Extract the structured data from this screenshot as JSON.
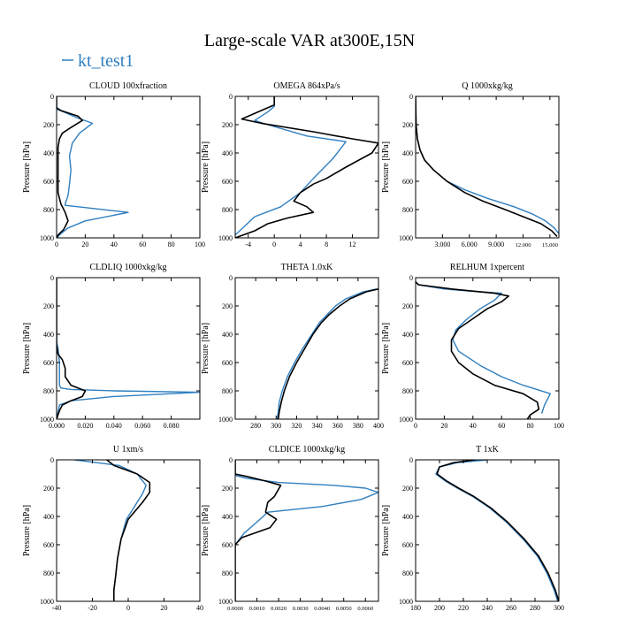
{
  "figure": {
    "title": "Large-scale VAR at300E,15N",
    "legend": [
      {
        "name": "kt_test1",
        "color": "#2f7fc1"
      }
    ],
    "ref_color": "#000000"
  },
  "chart_data": [
    {
      "type": "line",
      "title": "CLOUD 100xfraction",
      "ylabel": "Pressure [hPa]",
      "xlim": [
        0,
        100
      ],
      "ylim": [
        1000,
        0
      ],
      "xticks": [
        0,
        20,
        40,
        60,
        80,
        100
      ],
      "xtick_labels": [
        "0",
        "20",
        "40",
        "60",
        "80",
        "100"
      ],
      "yticks": [
        0,
        200,
        400,
        600,
        800,
        1000
      ],
      "ytick_labels": [
        "0",
        "200",
        "400",
        "600",
        "800",
        "1000"
      ],
      "series": [
        {
          "name": "kt_test1",
          "color": "#2f7fc1",
          "x": [
            0,
            0,
            5,
            14,
            25,
            16,
            11,
            9,
            10,
            9,
            8,
            6,
            6,
            15,
            50,
            20,
            8,
            3,
            0
          ],
          "y": [
            0,
            90,
            110,
            150,
            190,
            260,
            330,
            420,
            520,
            620,
            700,
            760,
            770,
            780,
            820,
            880,
            930,
            970,
            1000
          ]
        },
        {
          "name": "",
          "color": "#000000",
          "x": [
            0,
            0,
            3,
            15,
            18,
            10,
            4,
            2,
            1,
            1,
            1,
            1,
            3,
            6,
            8,
            5,
            1,
            0
          ],
          "y": [
            0,
            80,
            100,
            140,
            170,
            220,
            260,
            300,
            360,
            450,
            560,
            680,
            760,
            820,
            880,
            940,
            980,
            1000
          ]
        }
      ]
    },
    {
      "type": "line",
      "title": "OMEGA 864xPa/s",
      "ylabel": "Pressure [hPa]",
      "xlim": [
        -6,
        16
      ],
      "ylim": [
        1000,
        0
      ],
      "xticks": [
        -4,
        0,
        4,
        8,
        12
      ],
      "xtick_labels": [
        "-4",
        "0",
        "4",
        "8",
        "12"
      ],
      "yticks": [
        0,
        200,
        400,
        600,
        800,
        1000
      ],
      "ytick_labels": [
        "0",
        "200",
        "400",
        "600",
        "800",
        "1000"
      ],
      "series": [
        {
          "name": "kt_test1",
          "color": "#2f7fc1",
          "x": [
            0,
            0,
            -1,
            -3,
            -1,
            5,
            11,
            9,
            6,
            4,
            1,
            -3,
            -6
          ],
          "y": [
            0,
            70,
            110,
            170,
            200,
            280,
            320,
            440,
            580,
            680,
            780,
            850,
            980
          ]
        },
        {
          "name": "",
          "color": "#000000",
          "x": [
            0,
            0,
            -2,
            -5,
            -2,
            6,
            12,
            16,
            15,
            11,
            8,
            6,
            4,
            3,
            5,
            6,
            2,
            -1,
            -3,
            -6
          ],
          "y": [
            0,
            60,
            100,
            160,
            190,
            250,
            300,
            330,
            400,
            500,
            580,
            620,
            680,
            740,
            780,
            820,
            860,
            900,
            950,
            1000
          ]
        }
      ]
    },
    {
      "type": "line",
      "title": "Q 1000xkg/kg",
      "ylabel": "Pressure [hPa]",
      "xlim": [
        0,
        16000
      ],
      "ylim": [
        1000,
        0
      ],
      "xticks": [
        3000,
        6000,
        9000,
        12000,
        15000
      ],
      "xtick_labels": [
        "3.000",
        "6.000",
        "9.000",
        "12.000",
        "15.000"
      ],
      "yticks": [
        0,
        200,
        400,
        600,
        800,
        1000
      ],
      "ytick_labels": [
        "0",
        "200",
        "400",
        "600",
        "800",
        "1000"
      ],
      "series": [
        {
          "name": "kt_test1",
          "color": "#2f7fc1",
          "x": [
            0,
            50,
            200,
            500,
            1000,
            2000,
            3500,
            5500,
            8000,
            11000,
            13000,
            14500,
            15500,
            16000
          ],
          "y": [
            0,
            200,
            300,
            380,
            450,
            520,
            600,
            660,
            720,
            780,
            830,
            880,
            930,
            970
          ]
        },
        {
          "name": "",
          "color": "#000000",
          "x": [
            0,
            50,
            200,
            500,
            1000,
            2000,
            3500,
            5500,
            7500,
            10000,
            12000,
            14000,
            15200,
            15800
          ],
          "y": [
            0,
            200,
            300,
            380,
            450,
            520,
            600,
            680,
            740,
            800,
            850,
            900,
            950,
            990
          ]
        }
      ]
    },
    {
      "type": "line",
      "title": "CLDLIQ 1000xkg/kg",
      "ylabel": "Pressure [hPa]",
      "xlim": [
        0,
        0.1
      ],
      "ylim": [
        1000,
        0
      ],
      "xticks": [
        0,
        0.02,
        0.04,
        0.06,
        0.08
      ],
      "xtick_labels": [
        "0.000",
        "0.020",
        "0.040",
        "0.060",
        "0.080"
      ],
      "yticks": [
        0,
        200,
        400,
        600,
        800,
        1000
      ],
      "ytick_labels": [
        "0",
        "200",
        "400",
        "600",
        "800",
        "1000"
      ],
      "series": [
        {
          "name": "kt_test1",
          "color": "#2f7fc1",
          "x": [
            0,
            0,
            0.001,
            0.002,
            0.002,
            0.002,
            0.003,
            0.01,
            0.04,
            0.1,
            0.04,
            0.01,
            0.002,
            0
          ],
          "y": [
            0,
            450,
            500,
            600,
            700,
            760,
            780,
            790,
            800,
            810,
            840,
            870,
            900,
            1000
          ]
        },
        {
          "name": "",
          "color": "#000000",
          "x": [
            0,
            0,
            0.001,
            0.004,
            0.006,
            0.006,
            0.01,
            0.02,
            0.018,
            0.01,
            0.004,
            0.002,
            0
          ],
          "y": [
            0,
            480,
            540,
            580,
            640,
            700,
            760,
            800,
            840,
            870,
            900,
            940,
            1000
          ]
        }
      ]
    },
    {
      "type": "line",
      "title": "THETA 1.0xK",
      "ylabel": "Pressure [hPa]",
      "xlim": [
        260,
        400
      ],
      "ylim": [
        1000,
        0
      ],
      "xticks": [
        280,
        300,
        320,
        340,
        360,
        380,
        400
      ],
      "xtick_labels": [
        "280",
        "300",
        "320",
        "340",
        "360",
        "380",
        "400"
      ],
      "yticks": [
        0,
        200,
        400,
        600,
        800,
        1000
      ],
      "ytick_labels": [
        "0",
        "200",
        "400",
        "600",
        "800",
        "1000"
      ],
      "series": [
        {
          "name": "kt_test1",
          "color": "#2f7fc1",
          "x": [
            398,
            385,
            368,
            358,
            350,
            342,
            335,
            326,
            318,
            311,
            306,
            303,
            302,
            301
          ],
          "y": [
            80,
            100,
            150,
            200,
            260,
            320,
            400,
            500,
            600,
            700,
            800,
            880,
            950,
            1000
          ]
        },
        {
          "name": "",
          "color": "#000000",
          "x": [
            400,
            388,
            372,
            362,
            352,
            344,
            336,
            328,
            320,
            313,
            308,
            305,
            303,
            302
          ],
          "y": [
            80,
            100,
            150,
            200,
            260,
            320,
            400,
            500,
            600,
            700,
            800,
            880,
            950,
            1000
          ]
        }
      ]
    },
    {
      "type": "line",
      "title": "RELHUM 1xpercent",
      "ylabel": "Pressure [hPa]",
      "xlim": [
        0,
        100
      ],
      "ylim": [
        1000,
        0
      ],
      "xticks": [
        0,
        20,
        40,
        60,
        80,
        100
      ],
      "xtick_labels": [
        "0",
        "20",
        "40",
        "60",
        "80",
        "100"
      ],
      "yticks": [
        0,
        200,
        400,
        600,
        800,
        1000
      ],
      "ytick_labels": [
        "0",
        "200",
        "400",
        "600",
        "800",
        "1000"
      ],
      "series": [
        {
          "name": "kt_test1",
          "color": "#2f7fc1",
          "x": [
            0,
            2,
            20,
            45,
            60,
            55,
            45,
            35,
            28,
            26,
            30,
            45,
            60,
            75,
            94,
            90,
            88
          ],
          "y": [
            30,
            50,
            80,
            100,
            110,
            160,
            220,
            300,
            370,
            440,
            520,
            620,
            700,
            760,
            820,
            900,
            960
          ]
        },
        {
          "name": "",
          "color": "#000000",
          "x": [
            0,
            2,
            25,
            55,
            65,
            60,
            50,
            40,
            30,
            25,
            25,
            30,
            40,
            55,
            75,
            85,
            86,
            80,
            78
          ],
          "y": [
            30,
            50,
            80,
            110,
            130,
            170,
            220,
            290,
            360,
            440,
            520,
            600,
            680,
            760,
            820,
            880,
            930,
            970,
            1000
          ]
        }
      ]
    },
    {
      "type": "line",
      "title": "U 1xm/s",
      "ylabel": "Pressure [hPa]",
      "xlim": [
        -40,
        40
      ],
      "ylim": [
        1000,
        0
      ],
      "xticks": [
        -40,
        -20,
        0,
        20,
        40
      ],
      "xtick_labels": [
        "-40",
        "-20",
        "0",
        "20",
        "40"
      ],
      "yticks": [
        0,
        200,
        400,
        600,
        800,
        1000
      ],
      "ytick_labels": [
        "0",
        "200",
        "400",
        "600",
        "800",
        "1000"
      ],
      "series": [
        {
          "name": "kt_test1",
          "color": "#2f7fc1",
          "x": [
            -30,
            -5,
            5,
            10,
            8,
            4,
            -1,
            -4,
            -6,
            -7,
            -8,
            -8
          ],
          "y": [
            0,
            40,
            100,
            180,
            240,
            320,
            420,
            560,
            700,
            820,
            920,
            1000
          ]
        },
        {
          "name": "",
          "color": "#000000",
          "x": [
            -12,
            -8,
            5,
            12,
            12,
            8,
            0,
            -4,
            -6,
            -7,
            -8,
            -8
          ],
          "y": [
            0,
            40,
            100,
            160,
            230,
            300,
            420,
            560,
            700,
            820,
            920,
            1000
          ]
        }
      ]
    },
    {
      "type": "line",
      "title": "CLDICE 1000xkg/kg",
      "ylabel": "Pressure [hPa]",
      "xlim": [
        0,
        0.0066
      ],
      "ylim": [
        1000,
        0
      ],
      "xticks": [
        0,
        0.001,
        0.002,
        0.003,
        0.004,
        0.005,
        0.006
      ],
      "xtick_labels": [
        "0.0000",
        "0.0010",
        "0.0020",
        "0.0030",
        "0.0040",
        "0.0050",
        "0.0060"
      ],
      "yticks": [
        0,
        200,
        400,
        600,
        800,
        1000
      ],
      "ytick_labels": [
        "0",
        "200",
        "400",
        "600",
        "800",
        "1000"
      ],
      "series": [
        {
          "name": "kt_test1",
          "color": "#2f7fc1",
          "x": [
            0,
            0,
            0.0005,
            0.002,
            0.0045,
            0.006,
            0.0066,
            0.0058,
            0.004,
            0.0015,
            0.001,
            0.0004,
            0
          ],
          "y": [
            0,
            110,
            130,
            160,
            180,
            200,
            230,
            280,
            330,
            370,
            440,
            520,
            600
          ]
        },
        {
          "name": "",
          "color": "#000000",
          "x": [
            0,
            0,
            0.0006,
            0.0014,
            0.0021,
            0.0018,
            0.0015,
            0.0014,
            0.0019,
            0.0016,
            0.0003,
            0,
            0
          ],
          "y": [
            0,
            100,
            120,
            150,
            180,
            260,
            300,
            370,
            420,
            480,
            550,
            600,
            1000
          ]
        }
      ]
    },
    {
      "type": "line",
      "title": "T 1xK",
      "ylabel": "Pressure [hPa]",
      "xlim": [
        180,
        300
      ],
      "ylim": [
        1000,
        0
      ],
      "xticks": [
        180,
        200,
        220,
        240,
        260,
        280,
        300
      ],
      "xtick_labels": [
        "180",
        "200",
        "220",
        "240",
        "260",
        "280",
        "300"
      ],
      "yticks": [
        0,
        200,
        400,
        600,
        800,
        1000
      ],
      "ytick_labels": [
        "0",
        "200",
        "400",
        "600",
        "800",
        "1000"
      ],
      "series": [
        {
          "name": "kt_test1",
          "color": "#2f7fc1",
          "x": [
            240,
            215,
            200,
            197,
            205,
            215,
            228,
            242,
            256,
            270,
            282,
            290,
            296,
            299
          ],
          "y": [
            0,
            20,
            50,
            100,
            150,
            200,
            260,
            340,
            440,
            560,
            680,
            800,
            920,
            1000
          ]
        },
        {
          "name": "",
          "color": "#000000",
          "x": [
            230,
            212,
            200,
            198,
            206,
            216,
            229,
            243,
            257,
            271,
            283,
            291,
            297,
            300
          ],
          "y": [
            0,
            20,
            50,
            100,
            150,
            200,
            260,
            340,
            440,
            560,
            680,
            800,
            920,
            1000
          ]
        }
      ]
    }
  ]
}
